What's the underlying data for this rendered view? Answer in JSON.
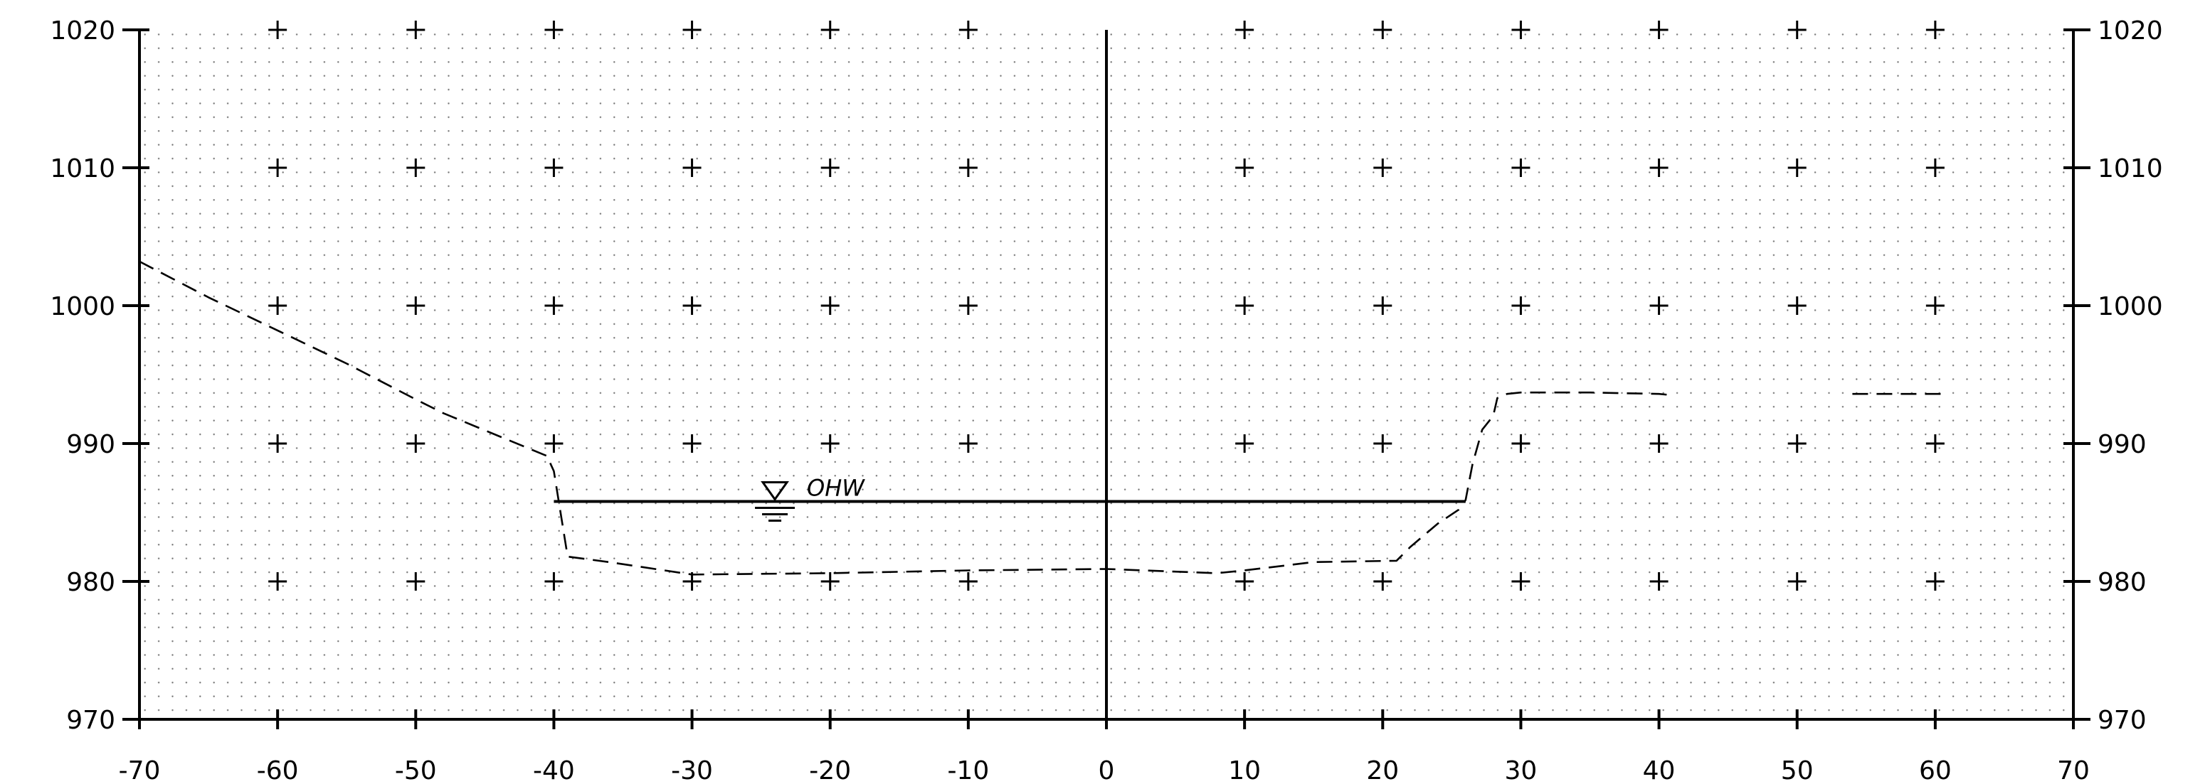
{
  "chart_data": {
    "type": "line",
    "title": "",
    "xlabel": "",
    "ylabel": "",
    "xlim": [
      -70,
      70
    ],
    "ylim": [
      970,
      1020
    ],
    "x_ticks": [
      "-70",
      "-60",
      "-50",
      "-40",
      "-30",
      "-20",
      "-10",
      "0",
      "10",
      "20",
      "30",
      "40",
      "50",
      "60",
      "70"
    ],
    "y_ticks_left": [
      "970",
      "980",
      "990",
      "1000",
      "1010",
      "1020"
    ],
    "y_ticks_right": [
      "970",
      "980",
      "990",
      "1000",
      "1010",
      "1020"
    ],
    "grid": "dotted",
    "ground_profile": {
      "style": "dashed",
      "segments": [
        [
          [
            -70,
            1003.2
          ],
          [
            -65,
            1000.6
          ],
          [
            -60,
            998.2
          ],
          [
            -55,
            995.8
          ],
          [
            -50,
            993.2
          ],
          [
            -48,
            992.2
          ],
          [
            -40.5,
            989.1
          ],
          [
            -40,
            988
          ],
          [
            -39,
            981.8
          ],
          [
            -36,
            981.4
          ],
          [
            -30,
            980.5
          ],
          [
            -20,
            980.6
          ],
          [
            -10,
            980.8
          ],
          [
            0,
            980.9
          ],
          [
            8,
            980.6
          ],
          [
            10,
            980.8
          ],
          [
            15,
            981.4
          ],
          [
            21,
            981.5
          ],
          [
            22,
            982.5
          ],
          [
            24,
            984.2
          ],
          [
            25.5,
            985.2
          ],
          [
            26,
            985.9
          ],
          [
            26.5,
            988.5
          ],
          [
            27.2,
            991
          ],
          [
            28,
            992
          ],
          [
            28.3,
            993.3
          ],
          [
            29,
            993.6
          ],
          [
            30,
            993.7
          ],
          [
            35,
            993.7
          ],
          [
            40,
            993.6
          ],
          [
            41,
            993.5
          ]
        ],
        [
          [
            54,
            993.6
          ],
          [
            61,
            993.6
          ]
        ]
      ]
    },
    "water_surface": {
      "style": "solid",
      "label": "OHW",
      "elevation": 985.8,
      "x_start": -40,
      "x_end": 26
    }
  }
}
